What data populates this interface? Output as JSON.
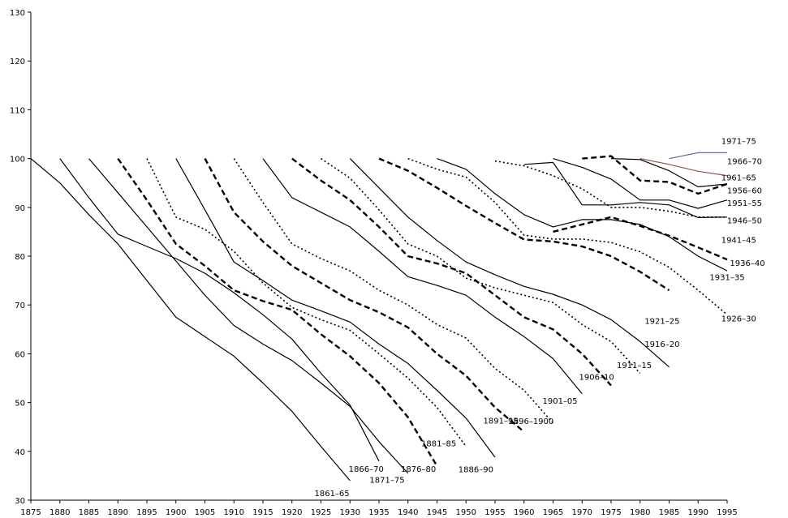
{
  "chart_data": {
    "type": "line",
    "title": "",
    "xlabel": "",
    "ylabel": "",
    "xlim": [
      1875,
      1995
    ],
    "ylim": [
      30,
      130
    ],
    "x_ticks": [
      "1875",
      "1880",
      "1885",
      "1890",
      "1895",
      "1900",
      "1905",
      "1910",
      "1915",
      "1920",
      "1925",
      "1930",
      "1935",
      "1940",
      "1945",
      "1950",
      "1955",
      "1960",
      "1965",
      "1970",
      "1975",
      "1980",
      "1985",
      "1990",
      "1995"
    ],
    "y_ticks": [
      "30",
      "40",
      "50",
      "60",
      "70",
      "80",
      "90",
      "100",
      "110",
      "120",
      "130"
    ],
    "grid": false,
    "legend": "none",
    "series": [
      {
        "name": "1861–65",
        "style": "solid",
        "color": "#000000",
        "x": [
          1875,
          1880,
          1885,
          1890,
          1895,
          1900,
          1905,
          1910,
          1915,
          1920,
          1925,
          1930
        ],
        "y": [
          100,
          95,
          88.5,
          82.5,
          75,
          67.5,
          63.5,
          59.5,
          54,
          48.2,
          41,
          34
        ]
      },
      {
        "name": "1866–70",
        "style": "solid",
        "color": "#000000",
        "x": [
          1880,
          1885,
          1890,
          1895,
          1900,
          1905,
          1910,
          1915,
          1920,
          1925,
          1930,
          1935
        ],
        "y": [
          100,
          92,
          84.5,
          82,
          79.5,
          76.5,
          72.5,
          68,
          63,
          56,
          49.5,
          38
        ]
      },
      {
        "name": "1871–75",
        "style": "solid",
        "color": "#000000",
        "x": [
          1885,
          1890,
          1895,
          1900,
          1905,
          1910,
          1915,
          1920,
          1925,
          1930,
          1935,
          1940
        ],
        "y": [
          100,
          93,
          86,
          79,
          72,
          65.8,
          62,
          58.6,
          54,
          49.2,
          42,
          35.5
        ]
      },
      {
        "name": "1876–80",
        "style": "dashed",
        "color": "#000000",
        "x": [
          1890,
          1895,
          1900,
          1905,
          1910,
          1915,
          1920,
          1925,
          1930,
          1935,
          1940,
          1945
        ],
        "y": [
          100,
          91.5,
          82.5,
          78,
          73,
          70.8,
          69,
          64,
          59.5,
          54,
          47,
          37
        ]
      },
      {
        "name": "1881–85",
        "style": "dotted",
        "color": "#000000",
        "x": [
          1895,
          1900,
          1905,
          1910,
          1915,
          1920,
          1925,
          1930,
          1935,
          1940,
          1945,
          1950
        ],
        "y": [
          100,
          88,
          85.5,
          81,
          74.5,
          69.5,
          67,
          64.8,
          60,
          55,
          49,
          41
        ]
      },
      {
        "name": "1886–90",
        "style": "solid",
        "color": "#000000",
        "x": [
          1900,
          1905,
          1910,
          1915,
          1920,
          1925,
          1930,
          1935,
          1940,
          1945,
          1950,
          1955
        ],
        "y": [
          100,
          89.5,
          78.8,
          75,
          71,
          68.8,
          66.5,
          62,
          58,
          52.5,
          46.8,
          38.8
        ]
      },
      {
        "name": "1891–95",
        "style": "dashed",
        "color": "#000000",
        "x": [
          1905,
          1910,
          1915,
          1920,
          1925,
          1930,
          1935,
          1940,
          1945,
          1950,
          1955,
          1960
        ],
        "y": [
          100,
          89,
          83,
          78,
          74.5,
          71,
          68.5,
          65.4,
          60,
          55.5,
          49,
          44
        ]
      },
      {
        "name": "1896–1900",
        "style": "dotted",
        "color": "#000000",
        "x": [
          1910,
          1915,
          1920,
          1925,
          1930,
          1935,
          1940,
          1945,
          1950,
          1955,
          1960,
          1965
        ],
        "y": [
          100,
          91,
          82.5,
          79.5,
          77,
          73,
          70,
          66,
          63.2,
          57,
          52.5,
          45.8
        ]
      },
      {
        "name": "1901–05",
        "style": "solid",
        "color": "#000000",
        "x": [
          1915,
          1920,
          1925,
          1930,
          1935,
          1940,
          1945,
          1950,
          1955,
          1960,
          1965,
          1970
        ],
        "y": [
          100,
          92,
          89,
          86,
          81,
          75.8,
          74,
          72,
          67.5,
          63.5,
          59,
          51.8
        ]
      },
      {
        "name": "1906–10",
        "style": "dashed",
        "color": "#000000",
        "x": [
          1920,
          1925,
          1930,
          1935,
          1940,
          1945,
          1950,
          1955,
          1960,
          1965,
          1970,
          1975
        ],
        "y": [
          100,
          95.5,
          91.5,
          86,
          80,
          78.5,
          76.5,
          72,
          67.5,
          65,
          60,
          53.5
        ]
      },
      {
        "name": "1911–15",
        "style": "dotted",
        "color": "#000000",
        "x": [
          1925,
          1930,
          1935,
          1940,
          1945,
          1950,
          1955,
          1960,
          1965,
          1970,
          1975,
          1980
        ],
        "y": [
          100,
          96,
          89.5,
          82.5,
          80,
          75.5,
          73.5,
          72,
          70.5,
          66,
          62.5,
          56
        ]
      },
      {
        "name": "1916–20",
        "style": "solid",
        "color": "#000000",
        "x": [
          1930,
          1935,
          1940,
          1945,
          1950,
          1955,
          1960,
          1965,
          1970,
          1975,
          1980,
          1985
        ],
        "y": [
          100,
          94,
          88,
          83.2,
          78.8,
          76.2,
          73.8,
          72.2,
          70,
          67,
          62.5,
          57.3
        ]
      },
      {
        "name": "1921–25",
        "style": "dashed",
        "color": "#000000",
        "x": [
          1935,
          1940,
          1945,
          1950,
          1955,
          1960,
          1965,
          1970,
          1975,
          1980,
          1985
        ],
        "y": [
          100,
          97.5,
          94,
          90.3,
          86.8,
          83.4,
          83,
          82,
          80,
          76.8,
          73
        ]
      },
      {
        "name": "1926–30",
        "style": "dotted",
        "color": "#000000",
        "x": [
          1940,
          1945,
          1950,
          1955,
          1960,
          1965,
          1970,
          1975,
          1980,
          1985,
          1990,
          1995
        ],
        "y": [
          100,
          97.8,
          96.2,
          91,
          84.3,
          83.5,
          83.5,
          82.8,
          80.9,
          77.7,
          73,
          68
        ]
      },
      {
        "name": "1931–35",
        "style": "solid",
        "color": "#000000",
        "x": [
          1945,
          1950,
          1955,
          1960,
          1965,
          1970,
          1975,
          1980,
          1985,
          1990,
          1995
        ],
        "y": [
          100,
          97.8,
          92.8,
          88.5,
          86,
          87.5,
          87.5,
          86.5,
          84,
          80,
          77
        ]
      },
      {
        "name": "1936–40",
        "style": "dashed",
        "color": "#000000",
        "x": [
          1965,
          1970,
          1975,
          1980,
          1985,
          1990,
          1995
        ],
        "y": [
          85,
          86.5,
          88,
          86.2,
          84.2,
          81.8,
          79.3
        ]
      },
      {
        "name": "1941–45",
        "style": "dotted",
        "color": "#000000",
        "x": [
          1955,
          1960,
          1965,
          1970,
          1975,
          1980,
          1985,
          1990,
          1995
        ],
        "y": [
          99.5,
          98.5,
          96.5,
          93.8,
          90,
          90,
          89.2,
          88,
          88
        ]
      },
      {
        "name": "1946–50",
        "style": "solid",
        "color": "#000000",
        "x": [
          1960,
          1965,
          1970,
          1975,
          1980,
          1985,
          1990,
          1995
        ],
        "y": [
          98.8,
          99.2,
          90.5,
          90.5,
          91,
          90.5,
          87.9,
          88
        ]
      },
      {
        "name": "1951–55",
        "style": "solid",
        "color": "#000000",
        "x": [
          1965,
          1970,
          1975,
          1980,
          1985,
          1990,
          1995
        ],
        "y": [
          100,
          98.2,
          95.8,
          91.5,
          91.5,
          89.8,
          91.5
        ]
      },
      {
        "name": "1956–60",
        "style": "dashed",
        "color": "#000000",
        "x": [
          1970,
          1975,
          1980,
          1985,
          1990,
          1995
        ],
        "y": [
          100,
          100.5,
          95.5,
          95.2,
          92.8,
          94.8
        ]
      },
      {
        "name": "1961–65",
        "style": "solid",
        "color": "#000000",
        "x": [
          1975,
          1980,
          1985,
          1990,
          1995
        ],
        "y": [
          100,
          99.8,
          97.5,
          94.2,
          94.8
        ]
      },
      {
        "name": "1966–70",
        "style": "solid",
        "color": "#8B5A4A",
        "x": [
          1980,
          1985,
          1990,
          1995
        ],
        "y": [
          100,
          98.8,
          97.4,
          96.5
        ]
      },
      {
        "name": "1971–75",
        "style": "solid",
        "color": "#6E6E9E",
        "x": [
          1985,
          1990,
          1995
        ],
        "y": [
          100,
          101.2,
          101.2
        ]
      }
    ],
    "annotations": [
      {
        "text": "1971–75",
        "x": 1997,
        "y": 103.7
      },
      {
        "text": "1966–70",
        "x": 1998,
        "y": 99.5
      },
      {
        "text": "1961–65",
        "x": 1997,
        "y": 96.2
      },
      {
        "text": "1956–60",
        "x": 1998,
        "y": 93.5
      },
      {
        "text": "1951–55",
        "x": 1998,
        "y": 91
      },
      {
        "text": "1946–50",
        "x": 1998,
        "y": 87.4
      },
      {
        "text": "1941–45",
        "x": 1997,
        "y": 83.4
      },
      {
        "text": "1936–40",
        "x": 1998.5,
        "y": 78.7
      },
      {
        "text": "1931–35",
        "x": 1995,
        "y": 75.8
      },
      {
        "text": "1926–30",
        "x": 1997,
        "y": 67.3
      },
      {
        "text": "1921–25",
        "x": 1983.8,
        "y": 66.8
      },
      {
        "text": "1916–20",
        "x": 1983.8,
        "y": 62.1
      },
      {
        "text": "1911–15",
        "x": 1979,
        "y": 57.7
      },
      {
        "text": "1906–10",
        "x": 1972.5,
        "y": 55.3
      },
      {
        "text": "1901–05",
        "x": 1966.2,
        "y": 50.4
      },
      {
        "text": "1896–1900",
        "x": 1961.2,
        "y": 46.3
      },
      {
        "text": "1891–95",
        "x": 1956,
        "y": 46.4
      },
      {
        "text": "1886–90",
        "x": 1951.7,
        "y": 36.4
      },
      {
        "text": "1881–85",
        "x": 1945.3,
        "y": 41.7
      },
      {
        "text": "1876–80",
        "x": 1941.8,
        "y": 36.5
      },
      {
        "text": "1871–75",
        "x": 1936.4,
        "y": 34.2
      },
      {
        "text": "1866–70",
        "x": 1932.8,
        "y": 36.5
      },
      {
        "text": "1861–65",
        "x": 1926.9,
        "y": 31.5
      }
    ]
  }
}
